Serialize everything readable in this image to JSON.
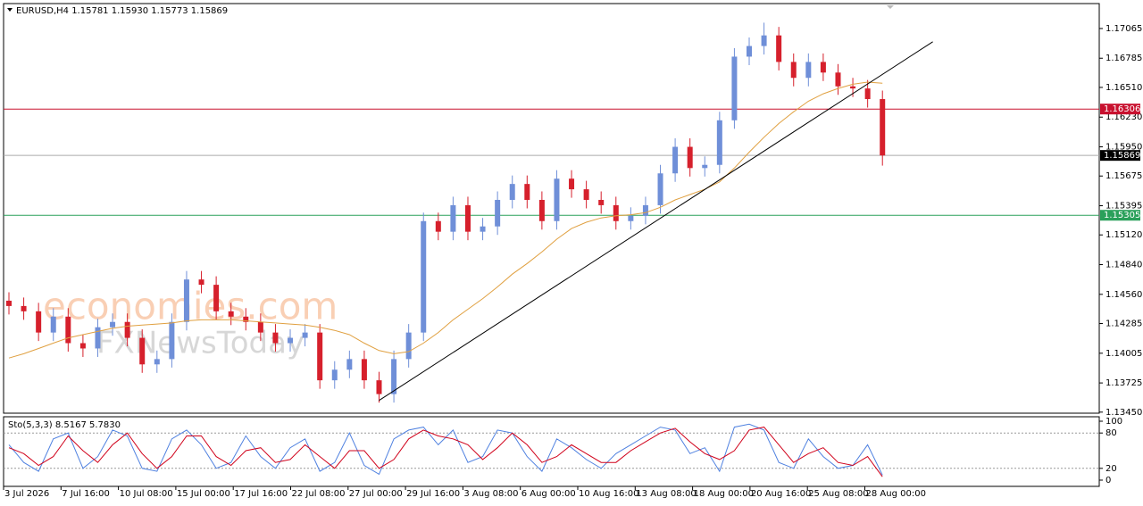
{
  "chart_data": {
    "type": "candlestick",
    "header": "EURUSD,H4  1.15781 1.15930 1.15773 1.15869",
    "watermark": [
      "economies.com",
      "FXNewsToday"
    ],
    "up_color": "#6f8fd8",
    "down_color": "#d6202c",
    "ylim": [
      1.1344,
      1.173
    ],
    "yticks": [
      1.17065,
      1.16785,
      {
        "value": 1.1651,
        "label": "1.16510"
      },
      {
        "value": 1.1623,
        "label": "1.16230"
      },
      {
        "value": 1.1595,
        "label": "1.15950"
      },
      1.15675,
      1.15395,
      {
        "value": 1.1512,
        "label": "1.15120"
      },
      {
        "value": 1.1484,
        "label": "1.14840"
      },
      {
        "value": 1.1456,
        "label": "1.14560"
      },
      1.14285,
      1.14005,
      1.13725,
      {
        "value": 1.1345,
        "label": "1.13450"
      }
    ],
    "open": [
      1.145,
      1.1445,
      1.144,
      1.142,
      1.1435,
      1.141,
      1.1405,
      1.1425,
      1.143,
      1.1415,
      1.139,
      1.1395,
      1.143,
      1.147,
      1.1465,
      1.144,
      1.1435,
      1.143,
      1.142,
      1.141,
      1.1415,
      1.142,
      1.1375,
      1.1385,
      1.1395,
      1.1375,
      1.1362,
      1.1395,
      1.142,
      1.1525,
      1.1515,
      1.154,
      1.1515,
      1.152,
      1.1545,
      1.156,
      1.1545,
      1.1525,
      1.1565,
      1.1555,
      1.1545,
      1.154,
      1.1525,
      1.153,
      1.154,
      1.157,
      1.1595,
      1.1575,
      1.1578,
      1.162,
      1.168,
      1.169,
      1.17,
      1.1675,
      1.166,
      1.1675,
      1.1665,
      1.1652,
      1.165,
      1.164
    ],
    "high": [
      1.1458,
      1.1453,
      1.1448,
      1.1443,
      1.1443,
      1.1418,
      1.1433,
      1.1438,
      1.1438,
      1.1423,
      1.1403,
      1.1438,
      1.1478,
      1.1478,
      1.1473,
      1.1448,
      1.1443,
      1.1438,
      1.1428,
      1.1423,
      1.1428,
      1.1428,
      1.1393,
      1.1403,
      1.1403,
      1.1383,
      1.1403,
      1.1428,
      1.1533,
      1.1533,
      1.1548,
      1.1548,
      1.1528,
      1.1553,
      1.1568,
      1.1568,
      1.1553,
      1.1573,
      1.1573,
      1.1563,
      1.1553,
      1.1548,
      1.1538,
      1.1548,
      1.1578,
      1.1603,
      1.1603,
      1.1586,
      1.1628,
      1.1688,
      1.1698,
      1.1712,
      1.1708,
      1.1683,
      1.1683,
      1.1683,
      1.1673,
      1.166,
      1.1658,
      1.1648
    ],
    "low": [
      1.1437,
      1.1432,
      1.1412,
      1.1412,
      1.1402,
      1.1397,
      1.1397,
      1.1417,
      1.1407,
      1.1382,
      1.1382,
      1.1387,
      1.1422,
      1.1457,
      1.1432,
      1.1427,
      1.1422,
      1.1412,
      1.1402,
      1.1402,
      1.1407,
      1.1367,
      1.1367,
      1.1377,
      1.1367,
      1.1354,
      1.1354,
      1.1387,
      1.1412,
      1.1507,
      1.1507,
      1.1507,
      1.1507,
      1.1512,
      1.1537,
      1.1537,
      1.1517,
      1.1517,
      1.1547,
      1.1537,
      1.1532,
      1.1517,
      1.1517,
      1.1522,
      1.1532,
      1.1562,
      1.1567,
      1.1567,
      1.157,
      1.1612,
      1.1672,
      1.1682,
      1.1667,
      1.1652,
      1.1652,
      1.1657,
      1.1644,
      1.1642,
      1.1632,
      1.15773
    ],
    "close": [
      1.1445,
      1.144,
      1.142,
      1.1435,
      1.141,
      1.1405,
      1.1425,
      1.143,
      1.1415,
      1.139,
      1.1395,
      1.143,
      1.147,
      1.1465,
      1.144,
      1.1435,
      1.143,
      1.142,
      1.141,
      1.1415,
      1.142,
      1.1375,
      1.1385,
      1.1395,
      1.1375,
      1.1362,
      1.1395,
      1.142,
      1.1525,
      1.1515,
      1.154,
      1.1515,
      1.152,
      1.1545,
      1.156,
      1.1545,
      1.1525,
      1.1565,
      1.1555,
      1.1545,
      1.154,
      1.1525,
      1.153,
      1.154,
      1.157,
      1.1595,
      1.1575,
      1.1578,
      1.162,
      1.168,
      1.169,
      1.17,
      1.1675,
      1.166,
      1.1675,
      1.1665,
      1.1652,
      1.165,
      1.164,
      1.15869
    ],
    "moving_average": {
      "color": "#e0a040",
      "values": [
        1.1396,
        1.14,
        1.1405,
        1.141,
        1.1415,
        1.1418,
        1.1421,
        1.1424,
        1.1426,
        1.1427,
        1.1428,
        1.1429,
        1.1431,
        1.1432,
        1.1432,
        1.1432,
        1.1431,
        1.143,
        1.1429,
        1.1428,
        1.1427,
        1.1425,
        1.1422,
        1.1418,
        1.141,
        1.1403,
        1.14,
        1.1402,
        1.141,
        1.142,
        1.1432,
        1.1442,
        1.1452,
        1.1463,
        1.1475,
        1.1485,
        1.1496,
        1.1508,
        1.1518,
        1.1524,
        1.1528,
        1.153,
        1.1531,
        1.1533,
        1.1538,
        1.1545,
        1.155,
        1.1555,
        1.1562,
        1.1575,
        1.159,
        1.1604,
        1.1617,
        1.1628,
        1.1638,
        1.1645,
        1.165,
        1.1654,
        1.1656,
        1.1655
      ]
    },
    "trendline": {
      "start": [
        25,
        1.1356
      ],
      "end": [
        62.4,
        1.1694
      ],
      "color": "#000000"
    },
    "levels": [
      {
        "value": 1.16306,
        "color": "#c8102e"
      },
      {
        "value": 1.15869,
        "color": "#000000"
      },
      {
        "value": 1.15305,
        "color": "#2aa05a"
      }
    ],
    "time_labels": [
      "3 Jul 2026",
      "7 Jul 16:00",
      "10 Jul 08:00",
      "15 Jul 00:00",
      "17 Jul 16:00",
      "22 Jul 08:00",
      "27 Jul 00:00",
      "29 Jul 16:00",
      "3 Aug 08:00",
      "6 Aug 00:00",
      "10 Aug 16:00",
      "13 Aug 08:00",
      "18 Aug 00:00",
      "20 Aug 16:00",
      "25 Aug 08:00",
      "28 Aug 00:00"
    ],
    "stochastic": {
      "label": "Sto(5,3,3) 8.5167 5.7830",
      "ylim": [
        0,
        100
      ],
      "yticks": [
        100,
        80,
        20,
        0
      ],
      "levels": [
        80,
        20
      ],
      "series": [
        {
          "name": "main",
          "color": "#4f81e0",
          "values": [
            60,
            30,
            15,
            70,
            80,
            20,
            40,
            85,
            75,
            20,
            15,
            70,
            85,
            60,
            20,
            30,
            75,
            40,
            20,
            55,
            70,
            15,
            30,
            80,
            25,
            10,
            70,
            85,
            90,
            60,
            85,
            30,
            40,
            85,
            80,
            40,
            15,
            70,
            55,
            35,
            20,
            45,
            60,
            75,
            90,
            85,
            45,
            55,
            15,
            90,
            95,
            85,
            30,
            20,
            70,
            40,
            20,
            25,
            60,
            8.5167
          ]
        },
        {
          "name": "signal",
          "color": "#d0021b",
          "values": [
            55,
            45,
            25,
            40,
            75,
            50,
            30,
            60,
            80,
            45,
            20,
            40,
            75,
            75,
            40,
            25,
            50,
            55,
            30,
            35,
            60,
            40,
            20,
            50,
            50,
            20,
            35,
            70,
            85,
            75,
            70,
            60,
            35,
            55,
            80,
            60,
            30,
            40,
            60,
            45,
            30,
            30,
            50,
            65,
            80,
            88,
            65,
            45,
            35,
            50,
            85,
            90,
            60,
            30,
            45,
            55,
            30,
            25,
            40,
            5.783
          ]
        }
      ]
    }
  }
}
